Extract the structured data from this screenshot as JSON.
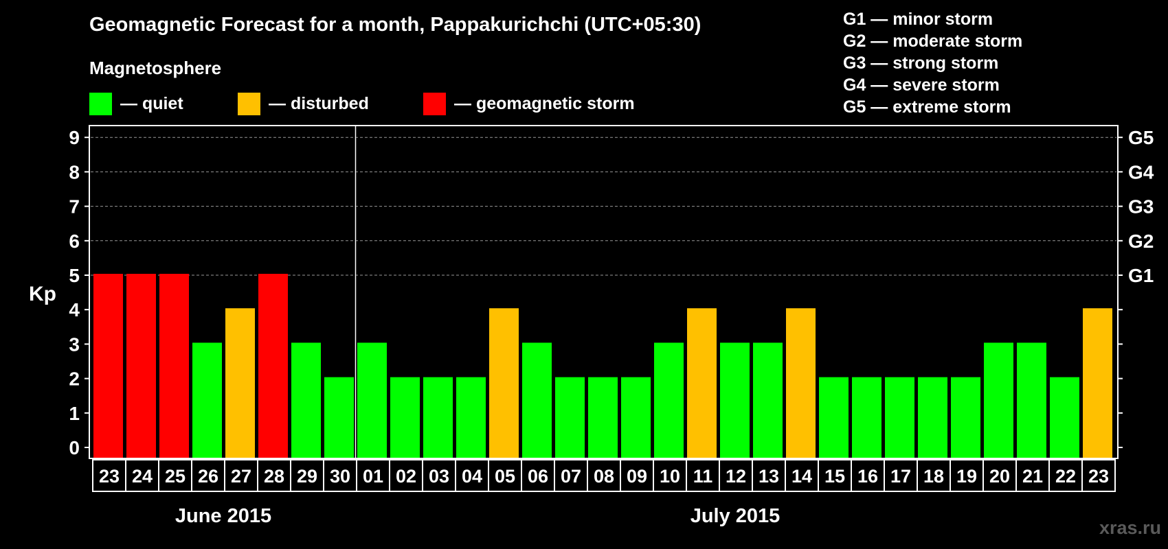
{
  "header": {
    "title": "Geomagnetic Forecast for a month, Pappakurichchi (UTC+05:30)",
    "magnetosphere_label": "Magnetosphere"
  },
  "legend": [
    {
      "label": "— quiet",
      "color": "#00ff00"
    },
    {
      "label": "— disturbed",
      "color": "#ffc000"
    },
    {
      "label": "— geomagnetic storm",
      "color": "#ff0000"
    }
  ],
  "storm_levels": [
    {
      "code": "G1",
      "text": "G1 — minor storm"
    },
    {
      "code": "G2",
      "text": "G2 — moderate storm"
    },
    {
      "code": "G3",
      "text": "G3 — strong storm"
    },
    {
      "code": "G4",
      "text": "G4 — severe storm"
    },
    {
      "code": "G5",
      "text": "G5 — extreme storm"
    }
  ],
  "months": [
    "June 2015",
    "July 2015"
  ],
  "watermark": "xras.ru",
  "chart_data": {
    "type": "bar",
    "ylabel": "Kp",
    "ylim": [
      0,
      9
    ],
    "yticks": [
      "0",
      "1",
      "2",
      "3",
      "4",
      "5",
      "6",
      "7",
      "8",
      "9"
    ],
    "right_ticks": [
      {
        "kp": 5,
        "label": "G1"
      },
      {
        "kp": 6,
        "label": "G2"
      },
      {
        "kp": 7,
        "label": "G3"
      },
      {
        "kp": 8,
        "label": "G4"
      },
      {
        "kp": 9,
        "label": "G5"
      }
    ],
    "grid": true,
    "categories": [
      "23",
      "24",
      "25",
      "26",
      "27",
      "28",
      "29",
      "30",
      "01",
      "02",
      "03",
      "04",
      "05",
      "06",
      "07",
      "08",
      "09",
      "10",
      "11",
      "12",
      "13",
      "14",
      "15",
      "16",
      "17",
      "18",
      "19",
      "20",
      "21",
      "22",
      "23"
    ],
    "values": [
      5,
      5,
      5,
      3,
      4,
      5,
      3,
      2,
      3,
      2,
      2,
      2,
      4,
      3,
      2,
      2,
      2,
      3,
      4,
      3,
      3,
      4,
      2,
      2,
      2,
      2,
      2,
      3,
      3,
      2,
      4
    ],
    "colors": {
      "quiet": "#00ff00",
      "disturbed": "#ffc000",
      "storm": "#ff0000"
    }
  }
}
